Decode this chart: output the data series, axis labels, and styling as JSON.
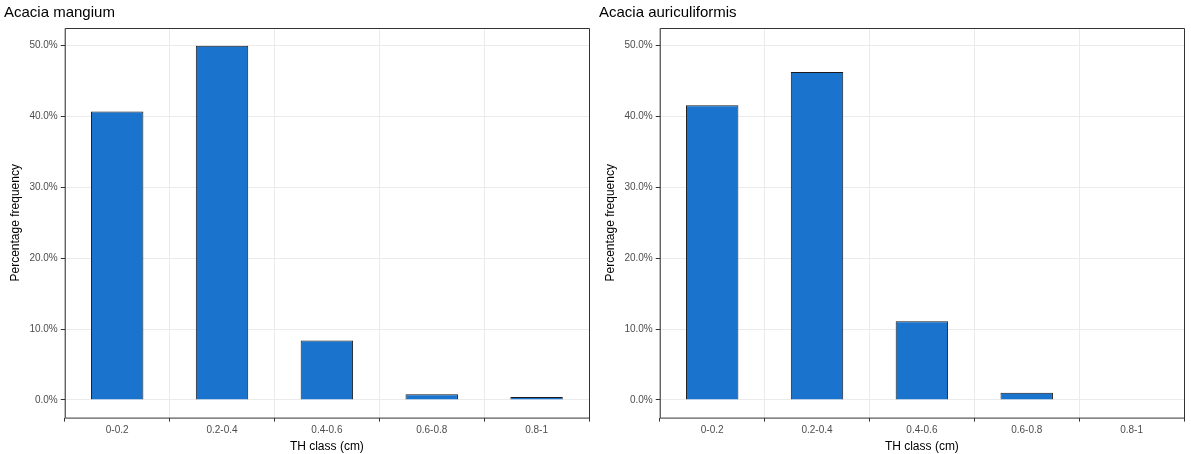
{
  "chart_data": [
    {
      "type": "bar",
      "title": "Acacia mangium",
      "xlabel": "TH class (cm)",
      "ylabel": "Percentage frequency",
      "categories": [
        "0-0.2",
        "0.2-0.4",
        "0.4-0.6",
        "0.6-0.8",
        "0.8-1"
      ],
      "values": [
        40.7,
        50.0,
        8.4,
        0.8,
        0.4
      ],
      "color": "#1a73cc",
      "ylim": [
        -2.5,
        52.5
      ],
      "yticks": [
        {
          "value": 0,
          "label": "0.0%"
        },
        {
          "value": 10,
          "label": "10.0%"
        },
        {
          "value": 20,
          "label": "20.0%"
        },
        {
          "value": 30,
          "label": "30.0%"
        },
        {
          "value": 40,
          "label": "40.0%"
        },
        {
          "value": 50,
          "label": "50.0%"
        }
      ],
      "grid": true,
      "legend": false
    },
    {
      "type": "bar",
      "title": "Acacia auriculiformis",
      "xlabel": "TH class (cm)",
      "ylabel": "Percentage frequency",
      "categories": [
        "0-0.2",
        "0.2-0.4",
        "0.4-0.6",
        "0.6-0.8",
        "0.8-1"
      ],
      "values": [
        41.6,
        46.3,
        11.1,
        1.0,
        0
      ],
      "color": "#1a73cc",
      "ylim": [
        -2.5,
        52.5
      ],
      "yticks": [
        {
          "value": 0,
          "label": "0.0%"
        },
        {
          "value": 10,
          "label": "10.0%"
        },
        {
          "value": 20,
          "label": "20.0%"
        },
        {
          "value": 30,
          "label": "30.0%"
        },
        {
          "value": 40,
          "label": "40.0%"
        },
        {
          "value": 50,
          "label": "50.0%"
        }
      ],
      "grid": true,
      "legend": false
    }
  ]
}
